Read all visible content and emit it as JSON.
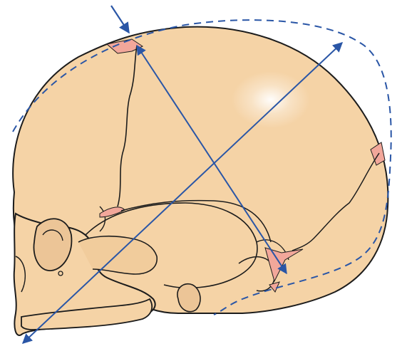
{
  "figure": {
    "subject": "neonatal-skull-lateral-view",
    "colors": {
      "bone": "#f5d3a6",
      "bone_shadow": "#e9bf8c",
      "outline": "#1c1c1c",
      "fontanelle": "#f2a79a",
      "measurement": "#2a56a6",
      "highlight": "#ffffff"
    },
    "annotations": {
      "fontanelle_pointer": "arrow-pointing-to-anterior-fontanelle",
      "outline_overlay": "dashed-outline-of-molded-skull",
      "diameter_long": "submentobregmatic-to-occipital-diameter",
      "diameter_cross": "bregma-to-posterior-diameter"
    }
  }
}
